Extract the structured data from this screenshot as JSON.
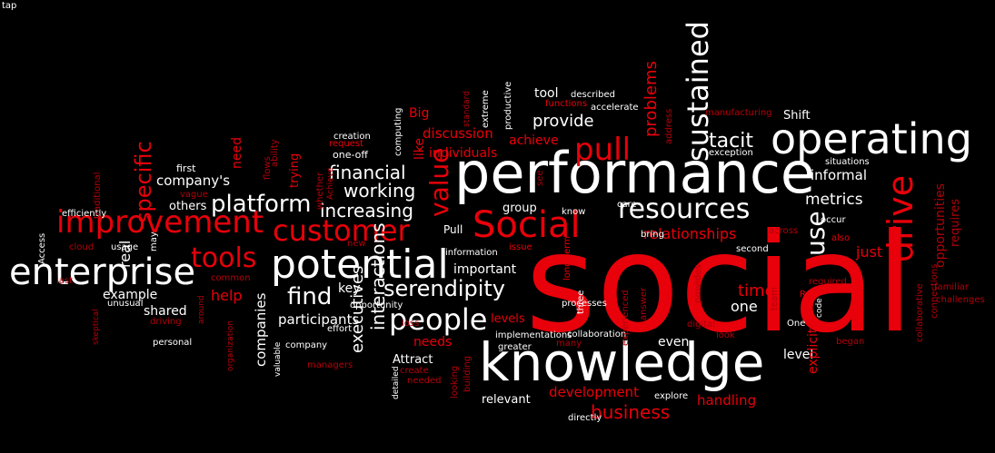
{
  "colors": {
    "white": "#ffffff",
    "red": "#e8000a",
    "dark_red": "#b3000a",
    "background": "#000000"
  },
  "words": [
    {
      "text": "social",
      "color": "red"
    },
    {
      "text": "performance",
      "color": "white"
    },
    {
      "text": "knowledge",
      "color": "white"
    },
    {
      "text": "operating",
      "color": "white"
    },
    {
      "text": "potential",
      "color": "white"
    },
    {
      "text": "enterprise",
      "color": "white"
    },
    {
      "text": "improvement",
      "color": "red"
    },
    {
      "text": "customer",
      "color": "red"
    },
    {
      "text": "Social",
      "color": "red"
    },
    {
      "text": "people",
      "color": "white"
    },
    {
      "text": "resources",
      "color": "white"
    },
    {
      "text": "platform",
      "color": "white"
    },
    {
      "text": "serendipity",
      "color": "white"
    },
    {
      "text": "pull",
      "color": "red"
    },
    {
      "text": "sustained",
      "color": "white"
    },
    {
      "text": "drive",
      "color": "red"
    },
    {
      "text": "value",
      "color": "red"
    },
    {
      "text": "tools",
      "color": "red"
    },
    {
      "text": "working",
      "color": "white"
    },
    {
      "text": "increasing",
      "color": "white"
    },
    {
      "text": "financial",
      "color": "white"
    },
    {
      "text": "find",
      "color": "white"
    },
    {
      "text": "tacit",
      "color": "white"
    },
    {
      "text": "provide",
      "color": "white"
    },
    {
      "text": "interactions",
      "color": "white"
    },
    {
      "text": "specific",
      "color": "red"
    },
    {
      "text": "use",
      "color": "white"
    },
    {
      "text": "metrics",
      "color": "white"
    },
    {
      "text": "business",
      "color": "red"
    },
    {
      "text": "problems",
      "color": "red"
    },
    {
      "text": "relationships",
      "color": "red"
    },
    {
      "text": "executives",
      "color": "white"
    },
    {
      "text": "participants",
      "color": "white"
    },
    {
      "text": "time",
      "color": "red"
    },
    {
      "text": "one",
      "color": "white"
    },
    {
      "text": "company's",
      "color": "white"
    },
    {
      "text": "discussion",
      "color": "red"
    },
    {
      "text": "informal",
      "color": "white"
    },
    {
      "text": "Shift",
      "color": "white"
    },
    {
      "text": "tool",
      "color": "white"
    },
    {
      "text": "achieve",
      "color": "red"
    },
    {
      "text": "individuals",
      "color": "red"
    },
    {
      "text": "Big",
      "color": "red"
    },
    {
      "text": "key",
      "color": "white"
    },
    {
      "text": "important",
      "color": "white"
    },
    {
      "text": "group",
      "color": "white"
    },
    {
      "text": "levels",
      "color": "red"
    },
    {
      "text": "needs",
      "color": "red"
    },
    {
      "text": "Attract",
      "color": "white"
    },
    {
      "text": "relevant",
      "color": "white"
    },
    {
      "text": "development",
      "color": "red"
    },
    {
      "text": "handling",
      "color": "red"
    },
    {
      "text": "even",
      "color": "white"
    },
    {
      "text": "level",
      "color": "white"
    },
    {
      "text": "explicit",
      "color": "red"
    },
    {
      "text": "just",
      "color": "red"
    },
    {
      "text": "opportunities",
      "color": "dark"
    },
    {
      "text": "requires",
      "color": "dark"
    },
    {
      "text": "help",
      "color": "red"
    },
    {
      "text": "example",
      "color": "white"
    },
    {
      "text": "shared",
      "color": "white"
    },
    {
      "text": "companies",
      "color": "white"
    },
    {
      "text": "real",
      "color": "white"
    },
    {
      "text": "others",
      "color": "white"
    },
    {
      "text": "need",
      "color": "red"
    },
    {
      "text": "trying",
      "color": "red"
    },
    {
      "text": "like",
      "color": "red"
    },
    {
      "text": "Pull",
      "color": "white"
    },
    {
      "text": "first",
      "color": "white"
    },
    {
      "text": "creation",
      "color": "white"
    },
    {
      "text": "one-off",
      "color": "white"
    },
    {
      "text": "request",
      "color": "red"
    },
    {
      "text": "computing",
      "color": "white"
    },
    {
      "text": "standard",
      "color": "dark"
    },
    {
      "text": "extreme",
      "color": "white"
    },
    {
      "text": "productive",
      "color": "white"
    },
    {
      "text": "functions",
      "color": "red"
    },
    {
      "text": "described",
      "color": "white"
    },
    {
      "text": "accelerate",
      "color": "white"
    },
    {
      "text": "address",
      "color": "dark"
    },
    {
      "text": "manufacturing",
      "color": "dark"
    },
    {
      "text": "exception",
      "color": "white"
    },
    {
      "text": "situations",
      "color": "white"
    },
    {
      "text": "occur",
      "color": "white"
    },
    {
      "text": "also",
      "color": "red"
    },
    {
      "text": "across",
      "color": "dark"
    },
    {
      "text": "care",
      "color": "white"
    },
    {
      "text": "know",
      "color": "white"
    },
    {
      "text": "bring",
      "color": "white"
    },
    {
      "text": "see",
      "color": "dark"
    },
    {
      "text": "long-term",
      "color": "red"
    },
    {
      "text": "issue",
      "color": "red"
    },
    {
      "text": "information",
      "color": "white"
    },
    {
      "text": "new",
      "color": "dark"
    },
    {
      "text": "efficiently",
      "color": "white"
    },
    {
      "text": "traditional",
      "color": "dark"
    },
    {
      "text": "Access",
      "color": "white"
    },
    {
      "text": "cloud",
      "color": "dark"
    },
    {
      "text": "usage",
      "color": "white"
    },
    {
      "text": "may",
      "color": "white"
    },
    {
      "text": "vague",
      "color": "dark"
    },
    {
      "text": "flows",
      "color": "dark"
    },
    {
      "text": "ability",
      "color": "dark"
    },
    {
      "text": "whether",
      "color": "dark"
    },
    {
      "text": "Achieve",
      "color": "dark"
    },
    {
      "text": "last",
      "color": "dark"
    },
    {
      "text": "common",
      "color": "dark"
    },
    {
      "text": "unusual",
      "color": "white"
    },
    {
      "text": "driving",
      "color": "dark"
    },
    {
      "text": "skeptical",
      "color": "dark"
    },
    {
      "text": "personal",
      "color": "white"
    },
    {
      "text": "around",
      "color": "dark"
    },
    {
      "text": "organization",
      "color": "dark"
    },
    {
      "text": "valuable",
      "color": "white"
    },
    {
      "text": "effort",
      "color": "white"
    },
    {
      "text": "company",
      "color": "white"
    },
    {
      "text": "opportunity",
      "color": "white"
    },
    {
      "text": "loss",
      "color": "dark"
    },
    {
      "text": "managers",
      "color": "dark"
    },
    {
      "text": "detailed",
      "color": "white"
    },
    {
      "text": "create",
      "color": "dark"
    },
    {
      "text": "needed",
      "color": "dark"
    },
    {
      "text": "looking",
      "color": "dark"
    },
    {
      "text": "building",
      "color": "dark"
    },
    {
      "text": "implementations",
      "color": "white"
    },
    {
      "text": "greater",
      "color": "white"
    },
    {
      "text": "processes",
      "color": "white"
    },
    {
      "text": "many",
      "color": "dark"
    },
    {
      "text": "collaboration",
      "color": "white"
    },
    {
      "text": "three",
      "color": "white"
    },
    {
      "text": "experienced",
      "color": "dark"
    },
    {
      "text": "answer",
      "color": "dark"
    },
    {
      "text": "provides",
      "color": "dark"
    },
    {
      "text": "second",
      "color": "white"
    },
    {
      "text": "digital",
      "color": "dark"
    },
    {
      "text": "look",
      "color": "dark"
    },
    {
      "text": "team",
      "color": "dark"
    },
    {
      "text": "required",
      "color": "dark"
    },
    {
      "text": "code",
      "color": "white"
    },
    {
      "text": "One",
      "color": "white"
    },
    {
      "text": "ROI",
      "color": "red"
    },
    {
      "text": "began",
      "color": "dark"
    },
    {
      "text": "collaborative",
      "color": "dark"
    },
    {
      "text": "connections",
      "color": "dark"
    },
    {
      "text": "familiar",
      "color": "dark"
    },
    {
      "text": "challenges",
      "color": "dark"
    },
    {
      "text": "explore",
      "color": "white"
    },
    {
      "text": "directly",
      "color": "white"
    },
    {
      "text": "tap",
      "color": "white"
    }
  ]
}
